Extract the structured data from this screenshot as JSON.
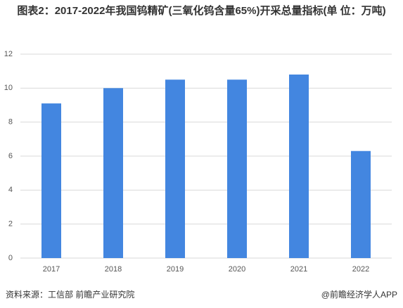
{
  "chart_data": {
    "type": "bar",
    "title": "图表2：2017-2022年我国钨精矿(三氧化钨含量65%)开采总量指标(单 位：万吨)",
    "categories": [
      "2017",
      "2018",
      "2019",
      "2020",
      "2021",
      "2022"
    ],
    "values": [
      9.1,
      10,
      10.5,
      10.5,
      10.8,
      6.3
    ],
    "color": "#4386e0",
    "ylim": [
      0,
      12
    ],
    "yticks": [
      0,
      2,
      4,
      6,
      8,
      10,
      12
    ],
    "grid": true
  },
  "footer": {
    "source": "资料来源：工信部 前瞻产业研究院",
    "brand": "@前瞻经济学人APP"
  }
}
